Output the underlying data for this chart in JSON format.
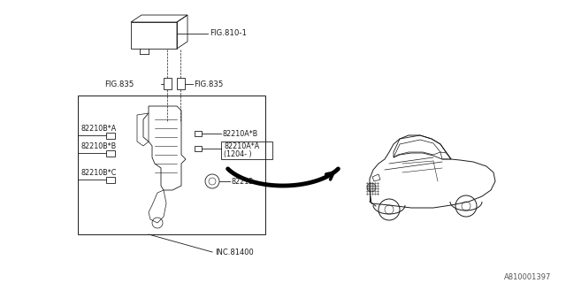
{
  "bg_color": "#ffffff",
  "line_color": "#1a1a1a",
  "watermark": "A810001397",
  "labels": {
    "fig810": "FIG.810-1",
    "fig835_left": "FIG.835",
    "fig835_right": "FIG.835",
    "part_82210AB": "82210A*B",
    "part_82210AA": "82210A*A",
    "part_82210AA_sub": "(1204- )",
    "part_82210BA": "82210B*A",
    "part_82210BB": "82210B*B",
    "part_82210BC": "82210B*C",
    "part_82212": "82212",
    "inc_81400": "INC.81400"
  }
}
